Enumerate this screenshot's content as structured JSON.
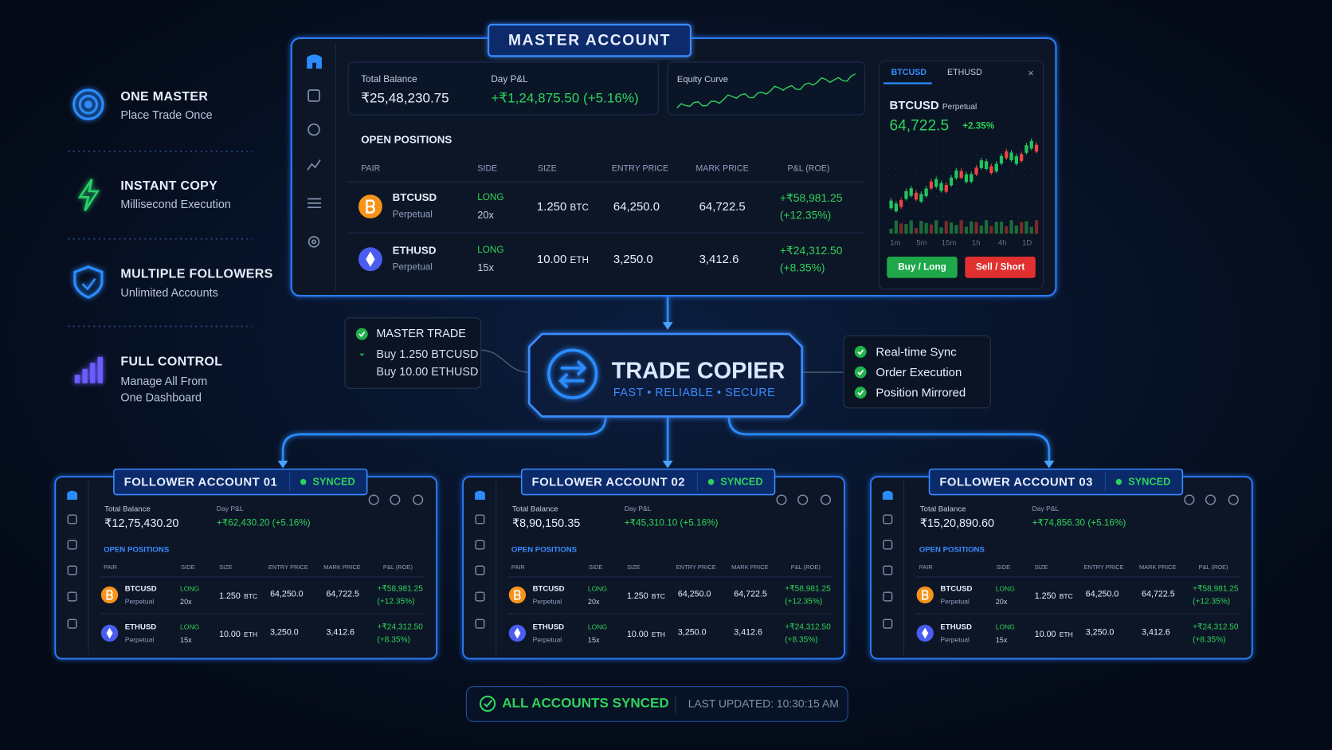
{
  "features": [
    {
      "title": "ONE MASTER",
      "subtitle": "Place Trade Once"
    },
    {
      "title": "INSTANT COPY",
      "subtitle": "Millisecond Execution"
    },
    {
      "title": "MULTIPLE FOLLOWERS",
      "subtitle": "Unlimited Accounts"
    },
    {
      "title": "FULL CONTROL",
      "subtitle": "Manage All From One Dashboard"
    }
  ],
  "master": {
    "title": "MASTER ACCOUNT",
    "balance": {
      "label": "Total Balance",
      "value": "₹25,48,230.75"
    },
    "pnl": {
      "label": "Day P&L",
      "value": "+₹1,24,875.50 (+5.16%)"
    },
    "equity_label": "Equity Curve",
    "positions_title": "OPEN POSITIONS",
    "columns": [
      "PAIR",
      "SIDE",
      "SIZE",
      "ENTRY PRICE",
      "MARK PRICE",
      "P&L (ROE)"
    ],
    "rows": [
      {
        "pair": "BTCUSD",
        "type": "Perpetual",
        "side": "LONG",
        "leverage": "20x",
        "size": "1.250",
        "unit": "BTC",
        "entry": "64,250.0",
        "mark": "64,722.5",
        "pnl": "+₹58,981.25",
        "roe": "(+12.35%)"
      },
      {
        "pair": "ETHUSD",
        "type": "Perpetual",
        "side": "LONG",
        "leverage": "15x",
        "size": "10.00",
        "unit": "ETH",
        "entry": "3,250.0",
        "mark": "3,412.6",
        "pnl": "+₹24,312.50",
        "roe": "(+8.35%)"
      }
    ]
  },
  "widget": {
    "tabs": [
      "BTCUSD",
      "ETHUSD"
    ],
    "close": "×",
    "symbol": "BTCUSD",
    "type": "Perpetual",
    "price": "64,722.5",
    "change": "+2.35%",
    "timeframes": [
      "1m",
      "5m",
      "15m",
      "1h",
      "4h",
      "1D"
    ],
    "buy": "Buy / Long",
    "sell": "Sell / Short"
  },
  "master_trade": {
    "title": "MASTER TRADE",
    "lines": [
      "Buy 1.250 BTCUSD",
      "Buy 10.00 ETHUSD"
    ]
  },
  "copier": {
    "title": "TRADE COPIER",
    "subtitle": "FAST • RELIABLE • SECURE"
  },
  "status": [
    "Real-time Sync",
    "Order Execution",
    "Position Mirrored"
  ],
  "followers": [
    {
      "title": "FOLLOWER ACCOUNT 01",
      "status": "SYNCED",
      "balance": {
        "label": "Total Balance",
        "value": "₹12,75,430.20"
      },
      "pnl": {
        "label": "Day P&L",
        "value": "+₹62,430.20 (+5.16%)"
      },
      "positions_title": "OPEN POSITIONS",
      "columns": [
        "PAIR",
        "SIDE",
        "SIZE",
        "ENTRY PRICE",
        "MARK PRICE",
        "P&L (ROE)"
      ],
      "rows": [
        {
          "pair": "BTCUSD",
          "type": "Perpetual",
          "side": "LONG",
          "leverage": "20x",
          "size": "1.250",
          "unit": "BTC",
          "entry": "64,250.0",
          "mark": "64,722.5",
          "pnl": "+₹58,981.25",
          "roe": "(+12.35%)"
        },
        {
          "pair": "ETHUSD",
          "type": "Perpetual",
          "side": "LONG",
          "leverage": "15x",
          "size": "10.00",
          "unit": "ETH",
          "entry": "3,250.0",
          "mark": "3,412.6",
          "pnl": "+₹24,312.50",
          "roe": "(+8.35%)"
        }
      ]
    },
    {
      "title": "FOLLOWER ACCOUNT 02",
      "status": "SYNCED",
      "balance": {
        "label": "Total Balance",
        "value": "₹8,90,150.35"
      },
      "pnl": {
        "label": "Day P&L",
        "value": "+₹45,310.10 (+5.16%)"
      },
      "positions_title": "OPEN POSITIONS",
      "columns": [
        "PAIR",
        "SIDE",
        "SIZE",
        "ENTRY PRICE",
        "MARK PRICE",
        "P&L (ROE)"
      ],
      "rows": [
        {
          "pair": "BTCUSD",
          "type": "Perpetual",
          "side": "LONG",
          "leverage": "20x",
          "size": "1.250",
          "unit": "BTC",
          "entry": "64,250.0",
          "mark": "64,722.5",
          "pnl": "+₹58,981.25",
          "roe": "(+12.35%)"
        },
        {
          "pair": "ETHUSD",
          "type": "Perpetual",
          "side": "LONG",
          "leverage": "15x",
          "size": "10.00",
          "unit": "ETH",
          "entry": "3,250.0",
          "mark": "3,412.6",
          "pnl": "+₹24,312.50",
          "roe": "(+8.35%)"
        }
      ]
    },
    {
      "title": "FOLLOWER ACCOUNT 03",
      "status": "SYNCED",
      "balance": {
        "label": "Total Balance",
        "value": "₹15,20,890.60"
      },
      "pnl": {
        "label": "Day P&L",
        "value": "+₹74,856.30 (+5.16%)"
      },
      "positions_title": "OPEN POSITIONS",
      "columns": [
        "PAIR",
        "SIDE",
        "SIZE",
        "ENTRY PRICE",
        "MARK PRICE",
        "P&L (ROE)"
      ],
      "rows": [
        {
          "pair": "BTCUSD",
          "type": "Perpetual",
          "side": "LONG",
          "leverage": "20x",
          "size": "1.250",
          "unit": "BTC",
          "entry": "64,250.0",
          "mark": "64,722.5",
          "pnl": "+₹58,981.25",
          "roe": "(+12.35%)"
        },
        {
          "pair": "ETHUSD",
          "type": "Perpetual",
          "side": "LONG",
          "leverage": "15x",
          "size": "10.00",
          "unit": "ETH",
          "entry": "3,250.0",
          "mark": "3,412.6",
          "pnl": "+₹24,312.50",
          "roe": "(+8.35%)"
        }
      ]
    }
  ],
  "footer": {
    "synced": "ALL ACCOUNTS SYNCED",
    "updated": "LAST UPDATED: 10:30:15 AM"
  }
}
